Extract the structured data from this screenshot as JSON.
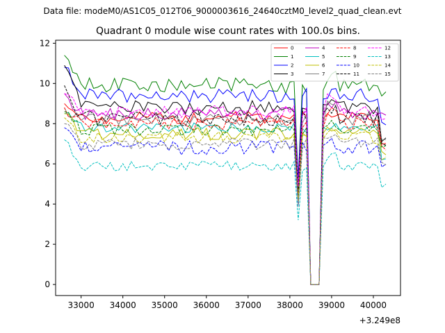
{
  "chart_data": {
    "type": "line",
    "suptitle": "Data file: modeM0/AS1C05_012T06_9000003616_24640cztM0_level2_quad_clean.evt",
    "title": "Quadrant 0 module wise count rates with 100.0s bins.",
    "xlabel": "",
    "ylabel": "",
    "x_offset_label": "+3.249e8",
    "xlim": [
      32390,
      40650
    ],
    "ylim": [
      -0.55,
      12.15
    ],
    "xticks": [
      33000,
      34000,
      35000,
      36000,
      37000,
      38000,
      39000,
      40000
    ],
    "yticks": [
      0,
      2,
      4,
      6,
      8,
      10,
      12
    ],
    "x_start": 32600,
    "x_step": 100,
    "n_points": 78,
    "gap": {
      "drop_start": 38200,
      "zero_start": 38500,
      "zero_end": 38700,
      "rise_end": 38800
    },
    "legend_position": "top-right",
    "series": [
      {
        "name": "0",
        "color": "#ff0000",
        "dashed": false,
        "level": 8.3,
        "start": 9.0,
        "rise": 0.0,
        "noise": 0.3,
        "end": 7.0
      },
      {
        "name": "1",
        "color": "#008000",
        "dashed": false,
        "level": 9.9,
        "start": 11.4,
        "rise": 0.5,
        "noise": 0.4,
        "end": 9.5
      },
      {
        "name": "2",
        "color": "#0000ff",
        "dashed": false,
        "level": 9.4,
        "start": 10.8,
        "rise": 0.2,
        "noise": 0.35,
        "end": 8.0
      },
      {
        "name": "3",
        "color": "#000000",
        "dashed": false,
        "level": 8.8,
        "start": 10.9,
        "rise": 0.3,
        "noise": 0.35,
        "end": 7.2
      },
      {
        "name": "4",
        "color": "#bf00bf",
        "dashed": false,
        "level": 8.5,
        "start": 9.5,
        "rise": 0.3,
        "noise": 0.3,
        "end": 8.5
      },
      {
        "name": "5",
        "color": "#00bfbf",
        "dashed": false,
        "level": 7.8,
        "start": 8.5,
        "rise": 0.0,
        "noise": 0.25,
        "end": 6.2
      },
      {
        "name": "6",
        "color": "#bfbf00",
        "dashed": false,
        "level": 7.5,
        "start": 8.5,
        "rise": 0.2,
        "noise": 0.3,
        "end": 6.5
      },
      {
        "name": "7",
        "color": "#808080",
        "dashed": false,
        "level": 8.2,
        "start": 8.8,
        "rise": 0.8,
        "noise": 0.3,
        "end": 7.3
      },
      {
        "name": "8",
        "color": "#ff0000",
        "dashed": true,
        "level": 8.0,
        "start": 8.8,
        "rise": 0.7,
        "noise": 0.3,
        "end": 6.8
      },
      {
        "name": "9",
        "color": "#008000",
        "dashed": true,
        "level": 7.7,
        "start": 8.6,
        "rise": 0.4,
        "noise": 0.3,
        "end": 6.9
      },
      {
        "name": "10",
        "color": "#0000ff",
        "dashed": true,
        "level": 6.8,
        "start": 7.8,
        "rise": 0.3,
        "noise": 0.35,
        "end": 5.9
      },
      {
        "name": "11",
        "color": "#000000",
        "dashed": true,
        "level": 8.3,
        "start": 9.9,
        "rise": 0.5,
        "noise": 0.4,
        "end": 7.0
      },
      {
        "name": "12",
        "color": "#ff00ff",
        "dashed": true,
        "level": 8.6,
        "start": 9.5,
        "rise": 0.6,
        "noise": 0.3,
        "end": 8.3
      },
      {
        "name": "13",
        "color": "#00bfbf",
        "dashed": true,
        "level": 5.9,
        "start": 7.2,
        "rise": 0.5,
        "noise": 0.25,
        "end": 4.9
      },
      {
        "name": "14",
        "color": "#bfbf00",
        "dashed": true,
        "level": 7.3,
        "start": 8.3,
        "rise": 0.2,
        "noise": 0.3,
        "end": 6.3
      },
      {
        "name": "15",
        "color": "#808080",
        "dashed": true,
        "level": 7.0,
        "start": 8.0,
        "rise": 0.3,
        "noise": 0.3,
        "end": 6.0
      }
    ]
  }
}
